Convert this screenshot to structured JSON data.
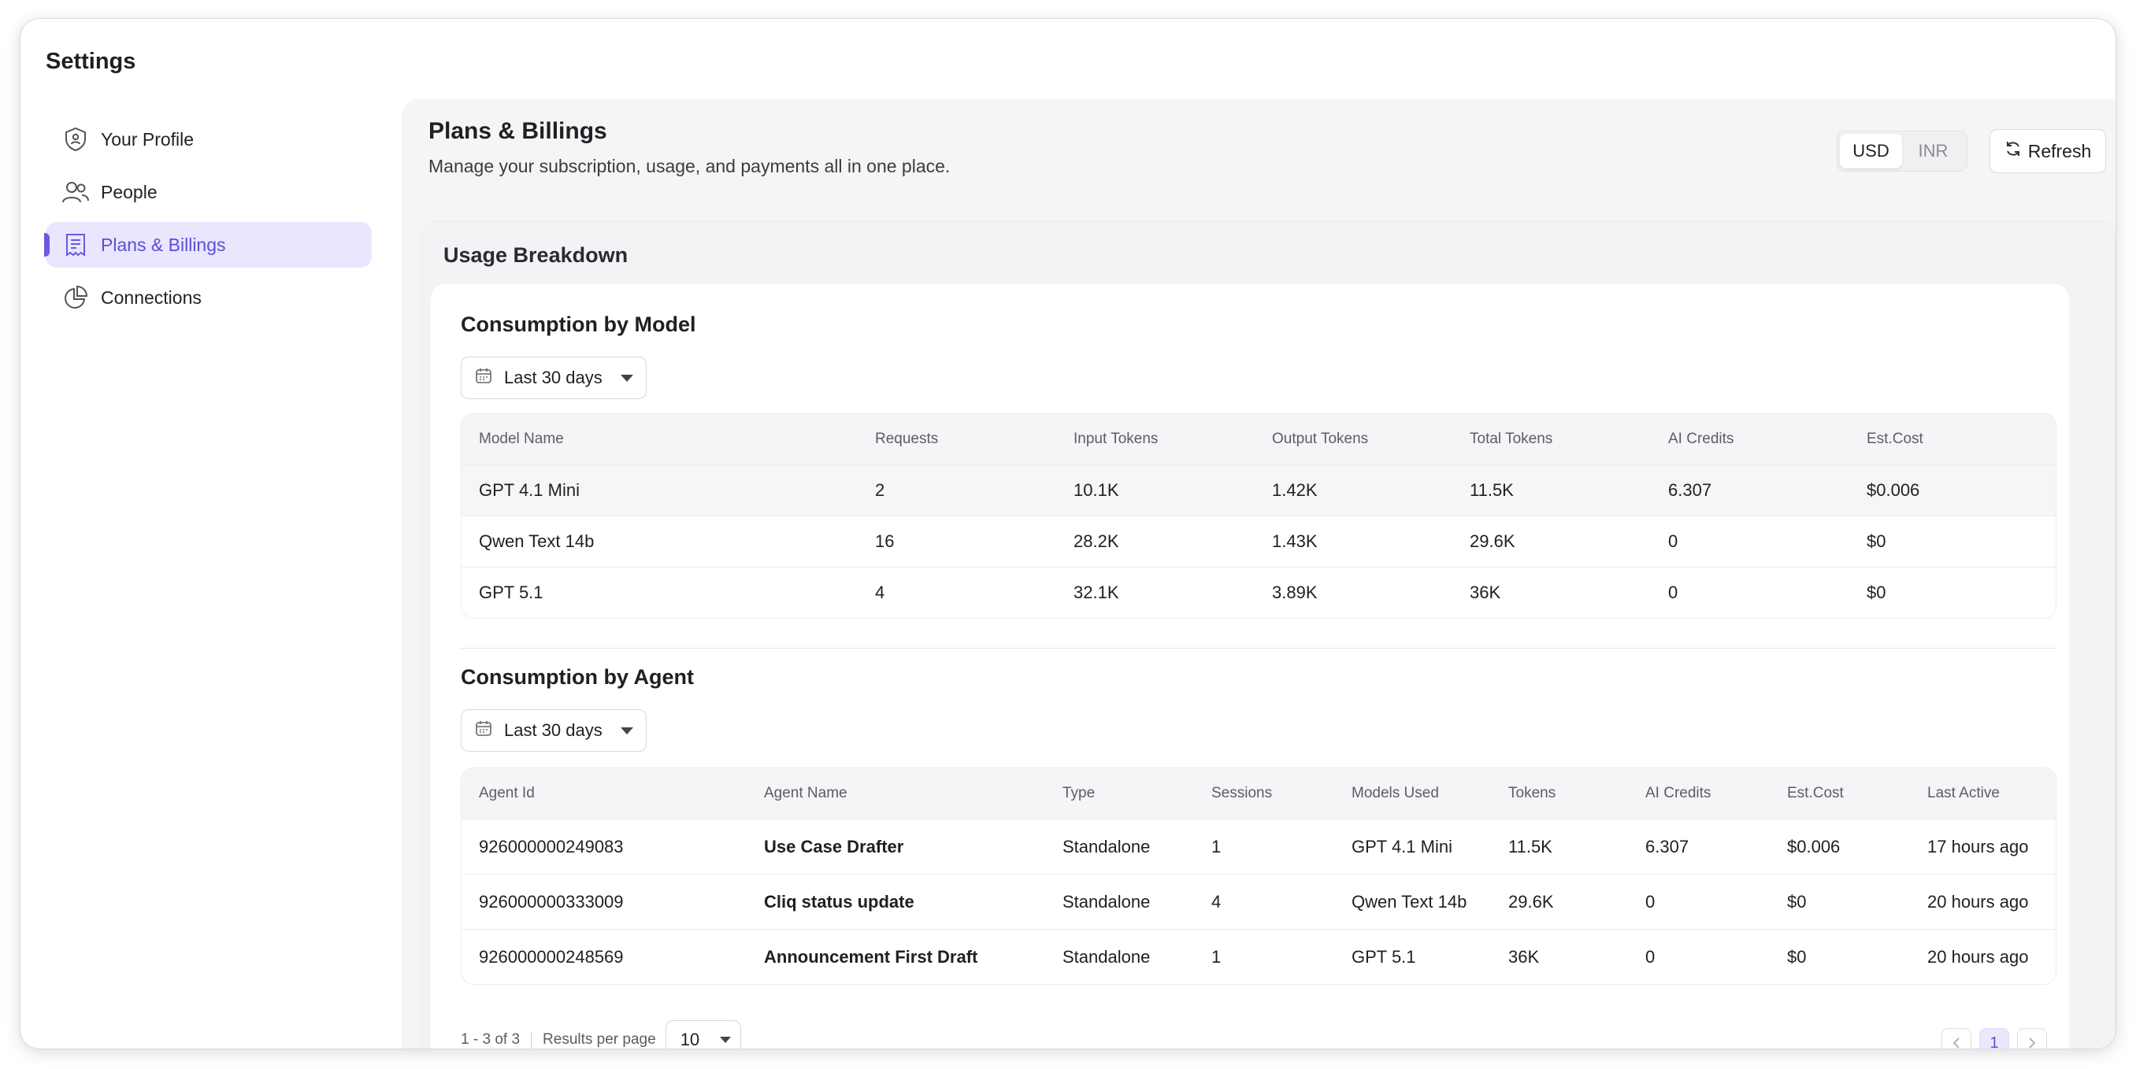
{
  "settings_title": "Settings",
  "sidebar": {
    "items": [
      {
        "label": "Your Profile",
        "icon": "shield-user-icon"
      },
      {
        "label": "People",
        "icon": "people-icon"
      },
      {
        "label": "Plans & Billings",
        "icon": "billing-icon",
        "active": true
      },
      {
        "label": "Connections",
        "icon": "pie-chart-icon"
      }
    ]
  },
  "header": {
    "title": "Plans & Billings",
    "subtitle": "Manage your subscription, usage, and payments all in one place.",
    "currency_options": [
      "USD",
      "INR"
    ],
    "currency_selected": "USD",
    "refresh_label": "Refresh"
  },
  "usage": {
    "title": "Usage Breakdown",
    "model_section": {
      "title": "Consumption by Model",
      "range": "Last 30 days",
      "columns": [
        "Model Name",
        "Requests",
        "Input Tokens",
        "Output Tokens",
        "Total Tokens",
        "AI Credits",
        "Est.Cost"
      ],
      "rows": [
        [
          "GPT 4.1 Mini",
          "2",
          "10.1K",
          "1.42K",
          "11.5K",
          "6.307",
          "$0.006"
        ],
        [
          "Qwen Text 14b",
          "16",
          "28.2K",
          "1.43K",
          "29.6K",
          "0",
          "$0"
        ],
        [
          "GPT 5.1",
          "4",
          "32.1K",
          "3.89K",
          "36K",
          "0",
          "$0"
        ]
      ]
    },
    "agent_section": {
      "title": "Consumption by Agent",
      "range": "Last 30 days",
      "columns": [
        "Agent Id",
        "Agent Name",
        "Type",
        "Sessions",
        "Models Used",
        "Tokens",
        "AI Credits",
        "Est.Cost",
        "Last Active"
      ],
      "rows": [
        [
          "926000000249083",
          "Use Case Drafter",
          "Standalone",
          "1",
          "GPT 4.1 Mini",
          "11.5K",
          "6.307",
          "$0.006",
          "17 hours ago"
        ],
        [
          "926000000333009",
          "Cliq status update",
          "Standalone",
          "4",
          "Qwen Text 14b",
          "29.6K",
          "0",
          "$0",
          "20 hours ago"
        ],
        [
          "926000000248569",
          "Announcement First Draft",
          "Standalone",
          "1",
          "GPT 5.1",
          "36K",
          "0",
          "$0",
          "20 hours ago"
        ]
      ]
    },
    "pagination": {
      "range_start": "1",
      "range_dash": " - ",
      "range_end": "3",
      "of_label": " of ",
      "total": "3",
      "per_page_label": "Results per page",
      "per_page": "10",
      "current_page": "1"
    }
  },
  "colors": {
    "accent": "#6a5ae0",
    "active_bg": "#e9e6fd",
    "panel_bg": "#f5f5f6"
  }
}
